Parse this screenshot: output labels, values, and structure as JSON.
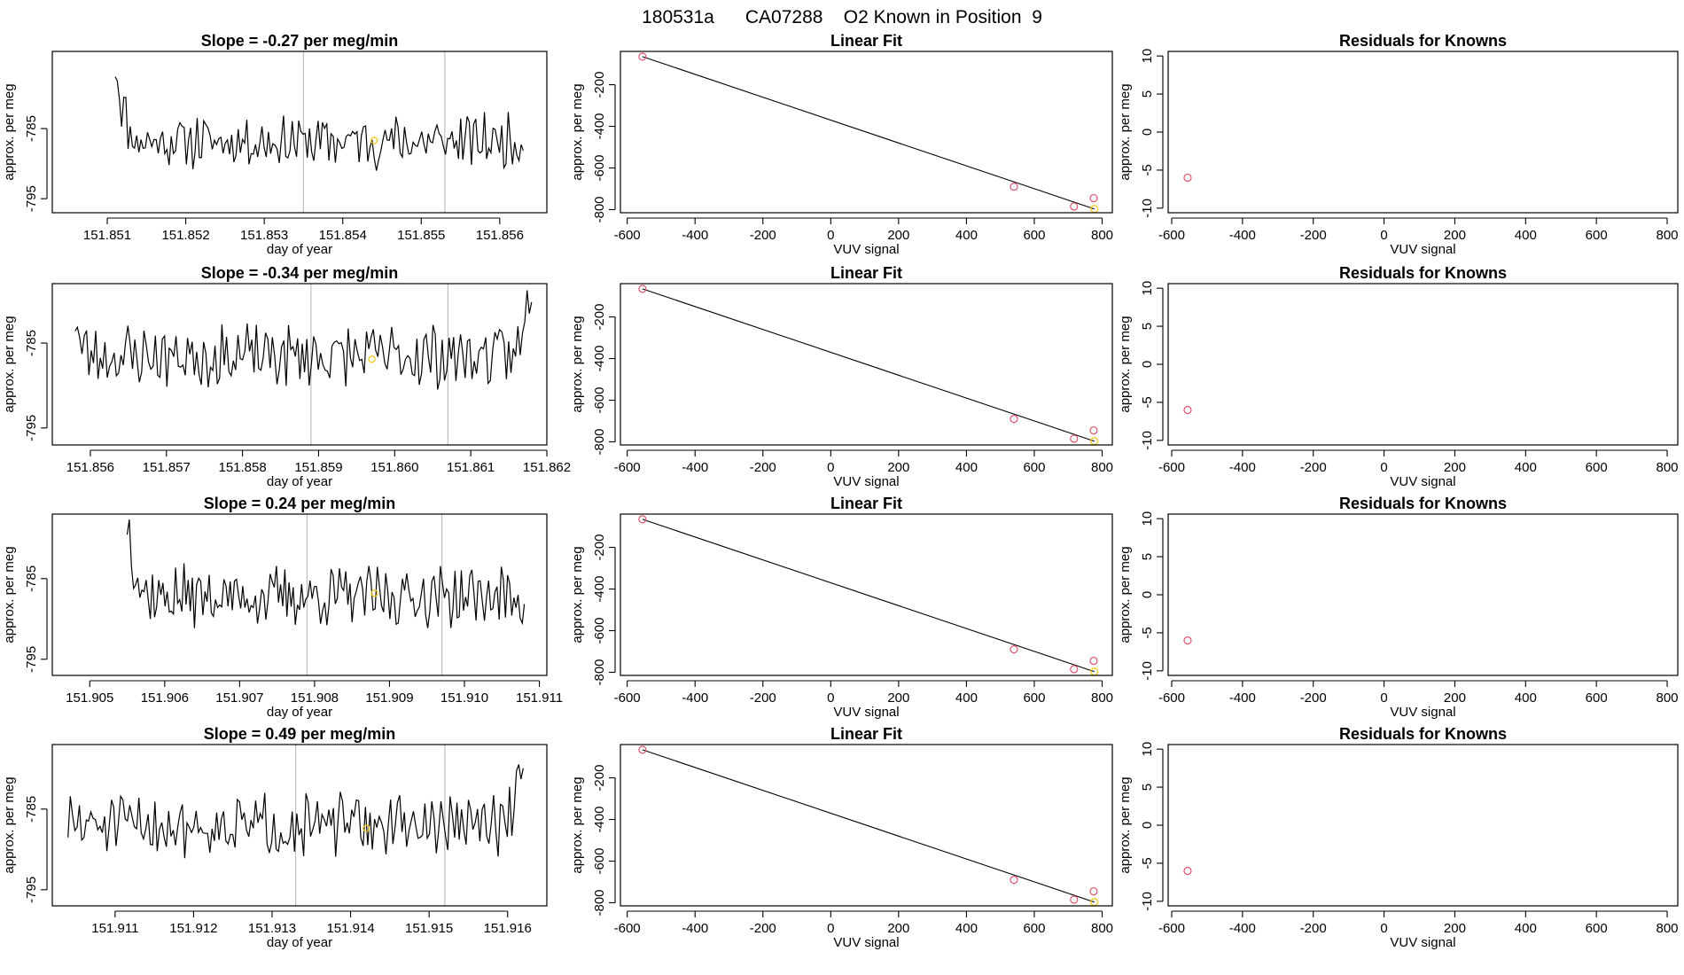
{
  "figure": {
    "title": "180531a      CA07288    O2 Known in Position  9"
  },
  "colors": {
    "trace": "#000000",
    "reference_line": "#bebebe",
    "known_marker": "#df536b",
    "current_marker": "#f5c710"
  },
  "chart_data": [
    {
      "type": "line",
      "panel": "timeseries",
      "row": 0,
      "title": "Slope =  -0.27  per meg/min",
      "xlabel": "day of year",
      "ylabel": "approx. per meg",
      "xlim": [
        151.8503,
        151.8566
      ],
      "ylim": [
        -797,
        -774
      ],
      "xticks": [
        151.851,
        151.852,
        151.853,
        151.854,
        151.855,
        151.856
      ],
      "xtick_labels": [
        "151.851",
        "151.852",
        "151.853",
        "151.854",
        "151.855",
        "151.856"
      ],
      "yticks": [
        -795,
        -785
      ],
      "ytick_labels": [
        "-795",
        "-785"
      ],
      "t0": 151.8511,
      "t1": 151.8563,
      "n": 190,
      "baseline": -786.8,
      "start_value": -776,
      "start_frac": 0.06,
      "end_value": null,
      "end_frac": 0,
      "seed": 11,
      "vlines": [
        151.8535,
        151.8553
      ],
      "marker": {
        "x": 151.8544,
        "y": -786.7
      }
    },
    {
      "type": "line",
      "panel": "timeseries",
      "row": 1,
      "title": "Slope =  -0.34  per meg/min",
      "xlabel": "day of year",
      "ylabel": "approx. per meg",
      "xlim": [
        151.8555,
        151.862
      ],
      "ylim": [
        -797,
        -778
      ],
      "xticks": [
        151.856,
        151.857,
        151.858,
        151.859,
        151.86,
        151.861,
        151.862
      ],
      "xtick_labels": [
        "151.856",
        "151.857",
        "151.858",
        "151.859",
        "151.860",
        "151.861",
        "151.862"
      ],
      "yticks": [
        -795,
        -785
      ],
      "ytick_labels": [
        "-795",
        "-785"
      ],
      "t0": 151.8558,
      "t1": 151.8618,
      "n": 200,
      "baseline": -786.5,
      "start_value": -782,
      "start_frac": 0.03,
      "end_value": -777,
      "end_frac": 0.04,
      "seed": 23,
      "vlines": [
        151.8589,
        151.8607
      ],
      "marker": {
        "x": 151.8597,
        "y": -786.9
      }
    },
    {
      "type": "line",
      "panel": "timeseries",
      "row": 2,
      "title": "Slope =  0.24  per meg/min",
      "xlabel": "day of year",
      "ylabel": "approx. per meg",
      "xlim": [
        151.9045,
        151.9111
      ],
      "ylim": [
        -797,
        -777
      ],
      "xticks": [
        151.905,
        151.906,
        151.907,
        151.908,
        151.909,
        151.91,
        151.911
      ],
      "xtick_labels": [
        "151.905",
        "151.906",
        "151.907",
        "151.908",
        "151.909",
        "151.910",
        "151.911"
      ],
      "yticks": [
        -795,
        -785
      ],
      "ytick_labels": [
        "-795",
        "-785"
      ],
      "t0": 151.9055,
      "t1": 151.9108,
      "n": 190,
      "baseline": -787.2,
      "start_value": -778,
      "start_frac": 0.06,
      "end_value": null,
      "end_frac": 0,
      "seed": 37,
      "vlines": [
        151.9079,
        151.9097
      ],
      "marker": {
        "x": 151.9088,
        "y": -786.8
      }
    },
    {
      "type": "line",
      "panel": "timeseries",
      "row": 3,
      "title": "Slope =  0.49  per meg/min",
      "xlabel": "day of year",
      "ylabel": "approx. per meg",
      "xlim": [
        151.9102,
        151.9165
      ],
      "ylim": [
        -797,
        -777
      ],
      "xticks": [
        151.911,
        151.912,
        151.913,
        151.914,
        151.915,
        151.916
      ],
      "xtick_labels": [
        "151.911",
        "151.912",
        "151.913",
        "151.914",
        "151.915",
        "151.916"
      ],
      "yticks": [
        -795,
        -785
      ],
      "ytick_labels": [
        "-795",
        "-785"
      ],
      "t0": 151.9104,
      "t1": 151.9162,
      "n": 200,
      "baseline": -787.0,
      "start_value": null,
      "start_frac": 0,
      "end_value": -777,
      "end_frac": 0.04,
      "seed": 51,
      "vlines": [
        151.9133,
        151.9152
      ],
      "marker": {
        "x": 151.9142,
        "y": -787.4
      }
    },
    {
      "type": "scatter",
      "panel": "linear_fit",
      "row": 0,
      "title": "Linear Fit",
      "xlabel": "VUV signal",
      "ylabel": "approx. per meg",
      "xlim": [
        -620,
        830
      ],
      "ylim": [
        -815,
        -40
      ],
      "xticks": [
        -600,
        -400,
        -200,
        0,
        200,
        400,
        600,
        800
      ],
      "xtick_labels": [
        "-600",
        "-400",
        "-200",
        "0",
        "200",
        "400",
        "600",
        "800"
      ],
      "yticks": [
        -800,
        -600,
        -400,
        -200
      ],
      "ytick_labels": [
        "-800",
        "-600",
        "-400",
        "-200"
      ],
      "fit_line": {
        "x": [
          -555,
          777
        ],
        "y": [
          -65,
          -797
        ]
      },
      "known_points": {
        "x": [
          -555,
          540,
          717,
          775
        ],
        "y": [
          -65,
          -690,
          -785,
          -745
        ]
      },
      "current_point": {
        "x": 777,
        "y": -797
      }
    },
    {
      "type": "scatter",
      "panel": "linear_fit",
      "row": 1,
      "title": "Linear Fit",
      "xlabel": "VUV signal",
      "ylabel": "approx. per meg",
      "xlim": [
        -620,
        830
      ],
      "ylim": [
        -815,
        -40
      ],
      "xticks": [
        -600,
        -400,
        -200,
        0,
        200,
        400,
        600,
        800
      ],
      "xtick_labels": [
        "-600",
        "-400",
        "-200",
        "0",
        "200",
        "400",
        "600",
        "800"
      ],
      "yticks": [
        -800,
        -600,
        -400,
        -200
      ],
      "ytick_labels": [
        "-800",
        "-600",
        "-400",
        "-200"
      ],
      "fit_line": {
        "x": [
          -555,
          777
        ],
        "y": [
          -65,
          -797
        ]
      },
      "known_points": {
        "x": [
          -555,
          540,
          717,
          775
        ],
        "y": [
          -65,
          -690,
          -785,
          -745
        ]
      },
      "current_point": {
        "x": 777,
        "y": -797
      }
    },
    {
      "type": "scatter",
      "panel": "linear_fit",
      "row": 2,
      "title": "Linear Fit",
      "xlabel": "VUV signal",
      "ylabel": "approx. per meg",
      "xlim": [
        -620,
        830
      ],
      "ylim": [
        -815,
        -40
      ],
      "xticks": [
        -600,
        -400,
        -200,
        0,
        200,
        400,
        600,
        800
      ],
      "xtick_labels": [
        "-600",
        "-400",
        "-200",
        "0",
        "200",
        "400",
        "600",
        "800"
      ],
      "yticks": [
        -800,
        -600,
        -400,
        -200
      ],
      "ytick_labels": [
        "-800",
        "-600",
        "-400",
        "-200"
      ],
      "fit_line": {
        "x": [
          -555,
          777
        ],
        "y": [
          -65,
          -797
        ]
      },
      "known_points": {
        "x": [
          -555,
          540,
          717,
          775
        ],
        "y": [
          -65,
          -690,
          -785,
          -745
        ]
      },
      "current_point": {
        "x": 777,
        "y": -797
      }
    },
    {
      "type": "scatter",
      "panel": "linear_fit",
      "row": 3,
      "title": "Linear Fit",
      "xlabel": "VUV signal",
      "ylabel": "approx. per meg",
      "xlim": [
        -620,
        830
      ],
      "ylim": [
        -815,
        -40
      ],
      "xticks": [
        -600,
        -400,
        -200,
        0,
        200,
        400,
        600,
        800
      ],
      "xtick_labels": [
        "-600",
        "-400",
        "-200",
        "0",
        "200",
        "400",
        "600",
        "800"
      ],
      "yticks": [
        -800,
        -600,
        -400,
        -200
      ],
      "ytick_labels": [
        "-800",
        "-600",
        "-400",
        "-200"
      ],
      "fit_line": {
        "x": [
          -555,
          777
        ],
        "y": [
          -65,
          -797
        ]
      },
      "known_points": {
        "x": [
          -555,
          540,
          717,
          775
        ],
        "y": [
          -65,
          -690,
          -785,
          -745
        ]
      },
      "current_point": {
        "x": 777,
        "y": -797
      }
    },
    {
      "type": "scatter",
      "panel": "residuals",
      "row": 0,
      "title": "Residuals for Knowns",
      "xlabel": "VUV signal",
      "ylabel": "approx. per meg",
      "xlim": [
        -610,
        830
      ],
      "ylim": [
        -10.6,
        10.6
      ],
      "xticks": [
        -600,
        -400,
        -200,
        0,
        200,
        400,
        600,
        800
      ],
      "xtick_labels": [
        "-600",
        "-400",
        "-200",
        "0",
        "200",
        "400",
        "600",
        "800"
      ],
      "yticks": [
        -10,
        -5,
        0,
        5,
        10
      ],
      "ytick_labels": [
        "-10",
        "-5",
        "0",
        "5",
        "10"
      ],
      "known_points": {
        "x": [
          -555
        ],
        "y": [
          -6
        ]
      }
    },
    {
      "type": "scatter",
      "panel": "residuals",
      "row": 1,
      "title": "Residuals for Knowns",
      "xlabel": "VUV signal",
      "ylabel": "approx. per meg",
      "xlim": [
        -610,
        830
      ],
      "ylim": [
        -10.6,
        10.6
      ],
      "xticks": [
        -600,
        -400,
        -200,
        0,
        200,
        400,
        600,
        800
      ],
      "xtick_labels": [
        "-600",
        "-400",
        "-200",
        "0",
        "200",
        "400",
        "600",
        "800"
      ],
      "yticks": [
        -10,
        -5,
        0,
        5,
        10
      ],
      "ytick_labels": [
        "-10",
        "-5",
        "0",
        "5",
        "10"
      ],
      "known_points": {
        "x": [
          -555
        ],
        "y": [
          -6
        ]
      }
    },
    {
      "type": "scatter",
      "panel": "residuals",
      "row": 2,
      "title": "Residuals for Knowns",
      "xlabel": "VUV signal",
      "ylabel": "approx. per meg",
      "xlim": [
        -610,
        830
      ],
      "ylim": [
        -10.6,
        10.6
      ],
      "xticks": [
        -600,
        -400,
        -200,
        0,
        200,
        400,
        600,
        800
      ],
      "xtick_labels": [
        "-600",
        "-400",
        "-200",
        "0",
        "200",
        "400",
        "600",
        "800"
      ],
      "yticks": [
        -10,
        -5,
        0,
        5,
        10
      ],
      "ytick_labels": [
        "-10",
        "-5",
        "0",
        "5",
        "10"
      ],
      "known_points": {
        "x": [
          -555
        ],
        "y": [
          -6
        ]
      }
    },
    {
      "type": "scatter",
      "panel": "residuals",
      "row": 3,
      "title": "Residuals for Knowns",
      "xlabel": "VUV signal",
      "ylabel": "approx. per meg",
      "xlim": [
        -610,
        830
      ],
      "ylim": [
        -10.6,
        10.6
      ],
      "xticks": [
        -600,
        -400,
        -200,
        0,
        200,
        400,
        600,
        800
      ],
      "xtick_labels": [
        "-600",
        "-400",
        "-200",
        "0",
        "200",
        "400",
        "600",
        "800"
      ],
      "yticks": [
        -10,
        -5,
        0,
        5,
        10
      ],
      "ytick_labels": [
        "-10",
        "-5",
        "0",
        "5",
        "10"
      ],
      "known_points": {
        "x": [
          -555
        ],
        "y": [
          -6
        ]
      }
    }
  ]
}
